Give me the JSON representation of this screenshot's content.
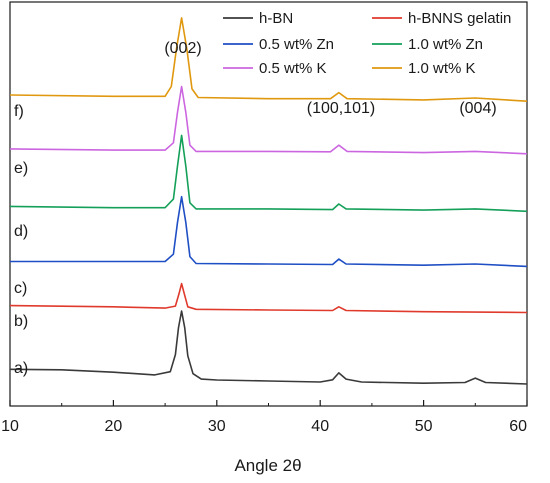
{
  "chart_data": {
    "type": "line",
    "title": "",
    "xlabel": "Angle 2θ",
    "ylabel": "",
    "xlim": [
      10,
      60
    ],
    "xticks": [
      10,
      20,
      30,
      40,
      50,
      60
    ],
    "grid": false,
    "legend_position": "top-right",
    "legend": [
      {
        "name": "h-BN",
        "color": "#3a3a3a"
      },
      {
        "name": "h-BNNS gelatin",
        "color": "#e03a2c"
      },
      {
        "name": "0.5 wt% Zn",
        "color": "#1f4fc4"
      },
      {
        "name": "1.0 wt% Zn",
        "color": "#15a05a"
      },
      {
        "name": "0.5 wt% K",
        "color": "#cc66e0"
      },
      {
        "name": "1.0 wt% K",
        "color": "#e0980f"
      }
    ],
    "annotations": [
      "(002)",
      "(100,101)",
      "(004)"
    ],
    "series": [
      {
        "name": "h-BN",
        "label": "a)",
        "color": "#3a3a3a",
        "x": [
          10,
          15,
          20,
          24,
          25.5,
          26,
          26.3,
          26.6,
          26.9,
          27.2,
          27.7,
          28.5,
          30,
          35,
          40,
          41.2,
          41.8,
          42.5,
          44,
          50,
          54,
          55,
          56,
          60
        ],
        "y": [
          1.5,
          1.48,
          1.38,
          1.27,
          1.4,
          2.1,
          3.2,
          3.88,
          3.2,
          2.05,
          1.32,
          1.1,
          1.06,
          1.02,
          0.98,
          1.07,
          1.35,
          1.1,
          0.98,
          0.93,
          0.96,
          1.14,
          0.96,
          0.9
        ]
      },
      {
        "name": "h-BNNS gelatin",
        "label": "b)",
        "color": "#e03a2c",
        "x": [
          10,
          20,
          25,
          26,
          26.35,
          26.6,
          26.85,
          27.2,
          28,
          35,
          41.2,
          41.8,
          42.5,
          50,
          60
        ],
        "y": [
          4.1,
          4.05,
          4.0,
          4.08,
          4.6,
          5.0,
          4.6,
          4.05,
          3.95,
          3.92,
          3.9,
          4.05,
          3.9,
          3.85,
          3.82
        ]
      },
      {
        "name": "0.5 wt% Zn",
        "label": "c)",
        "color": "#1f4fc4",
        "x": [
          10,
          20,
          25,
          25.8,
          26.2,
          26.6,
          27.0,
          27.4,
          28,
          35,
          41.2,
          41.8,
          42.5,
          50,
          55,
          60
        ],
        "y": [
          5.9,
          5.9,
          5.9,
          6.2,
          7.5,
          8.55,
          7.5,
          6.1,
          5.82,
          5.8,
          5.78,
          6.0,
          5.8,
          5.75,
          5.8,
          5.7
        ]
      },
      {
        "name": "1.0 wt% Zn",
        "label": "d)",
        "color": "#15a05a",
        "x": [
          10,
          20,
          25,
          25.8,
          26.2,
          26.6,
          27.0,
          27.4,
          28,
          35,
          41.2,
          41.8,
          42.5,
          50,
          55,
          60
        ],
        "y": [
          8.15,
          8.1,
          8.1,
          8.45,
          9.8,
          11.05,
          9.8,
          8.3,
          8.05,
          8.05,
          8.02,
          8.25,
          8.05,
          8.0,
          8.05,
          7.95
        ]
      },
      {
        "name": "0.5 wt% K",
        "label": "e)",
        "color": "#cc66e0",
        "x": [
          10,
          20,
          25,
          25.8,
          26.2,
          26.6,
          27.0,
          27.4,
          28,
          35,
          41.0,
          41.8,
          42.6,
          50,
          55,
          60
        ],
        "y": [
          10.5,
          10.45,
          10.45,
          10.75,
          12.0,
          13.05,
          12.0,
          10.65,
          10.4,
          10.4,
          10.38,
          10.65,
          10.4,
          10.35,
          10.4,
          10.3
        ]
      },
      {
        "name": "1.0 wt% K",
        "label": "f)",
        "color": "#e0980f",
        "x": [
          10,
          20,
          25,
          25.6,
          26.1,
          26.6,
          27.1,
          27.6,
          28.2,
          35,
          41.0,
          41.8,
          42.6,
          50,
          55,
          60
        ],
        "y": [
          12.7,
          12.65,
          12.65,
          13.05,
          14.6,
          15.85,
          14.6,
          12.95,
          12.6,
          12.55,
          12.55,
          12.8,
          12.55,
          12.5,
          12.58,
          12.45
        ]
      }
    ]
  }
}
